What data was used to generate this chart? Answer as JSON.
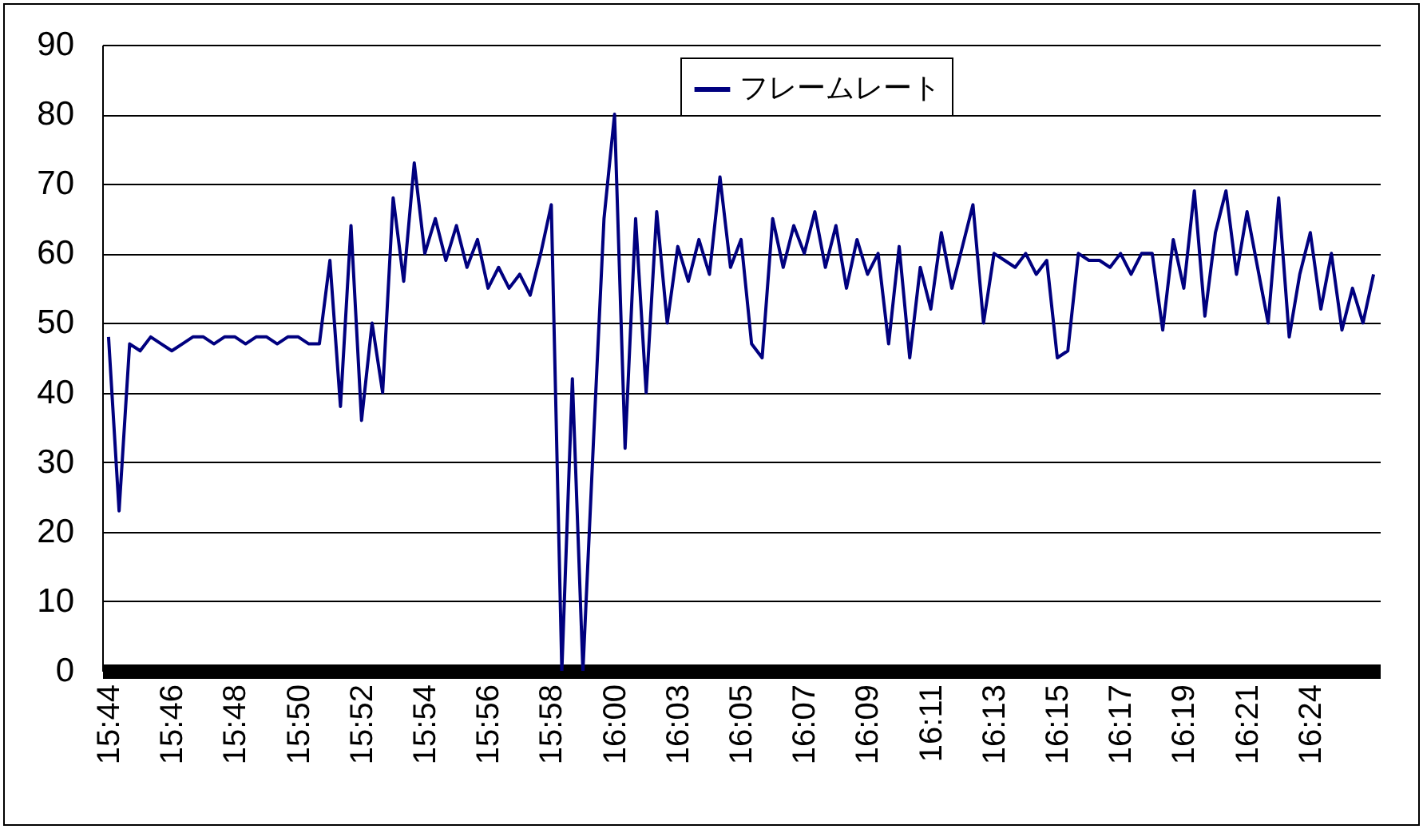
{
  "chart_data": {
    "type": "line",
    "categories": [
      "15:44",
      null,
      null,
      null,
      null,
      null,
      "15:46",
      null,
      null,
      null,
      null,
      null,
      "15:48",
      null,
      null,
      null,
      null,
      null,
      "15:50",
      null,
      null,
      null,
      null,
      null,
      "15:52",
      null,
      null,
      null,
      null,
      null,
      "15:54",
      null,
      null,
      null,
      null,
      null,
      "15:56",
      null,
      null,
      null,
      null,
      null,
      "15:58",
      null,
      null,
      null,
      null,
      null,
      "16:00",
      null,
      null,
      null,
      null,
      null,
      "16:03",
      null,
      null,
      null,
      null,
      null,
      "16:05",
      null,
      null,
      null,
      null,
      null,
      "16:07",
      null,
      null,
      null,
      null,
      null,
      "16:09",
      null,
      null,
      null,
      null,
      null,
      "16:11",
      null,
      null,
      null,
      null,
      null,
      "16:13",
      null,
      null,
      null,
      null,
      null,
      "16:15",
      null,
      null,
      null,
      null,
      null,
      "16:17",
      null,
      null,
      null,
      null,
      null,
      "16:19",
      null,
      null,
      null,
      null,
      null,
      "16:21",
      null,
      null,
      null,
      null,
      null,
      "16:24",
      null,
      null,
      null,
      null,
      null,
      null
    ],
    "series": [
      {
        "name": "フレームレート",
        "color": "#00007f",
        "values": [
          48,
          23,
          47,
          46,
          48,
          47,
          46,
          47,
          48,
          48,
          47,
          48,
          48,
          47,
          48,
          48,
          47,
          48,
          48,
          47,
          47,
          59,
          38,
          64,
          36,
          50,
          40,
          68,
          56,
          73,
          60,
          65,
          59,
          64,
          58,
          62,
          55,
          58,
          55,
          57,
          54,
          60,
          67,
          0,
          42,
          0,
          33,
          65,
          80,
          32,
          65,
          40,
          66,
          50,
          61,
          56,
          62,
          57,
          71,
          58,
          62,
          47,
          45,
          65,
          58,
          64,
          60,
          66,
          58,
          64,
          55,
          62,
          57,
          60,
          47,
          61,
          45,
          58,
          52,
          63,
          55,
          61,
          67,
          50,
          60,
          59,
          58,
          60,
          57,
          59,
          45,
          46,
          60,
          59,
          59,
          58,
          60,
          57,
          60,
          60,
          49,
          62,
          55,
          69,
          51,
          63,
          69,
          57,
          66,
          58,
          50,
          68,
          48,
          57,
          63,
          52,
          60,
          49,
          55,
          50,
          57
        ]
      }
    ],
    "ylim": [
      0,
      90
    ],
    "yticks": [
      0,
      10,
      20,
      30,
      40,
      50,
      60,
      70,
      80,
      90
    ],
    "grid": "y",
    "legend": "top"
  }
}
